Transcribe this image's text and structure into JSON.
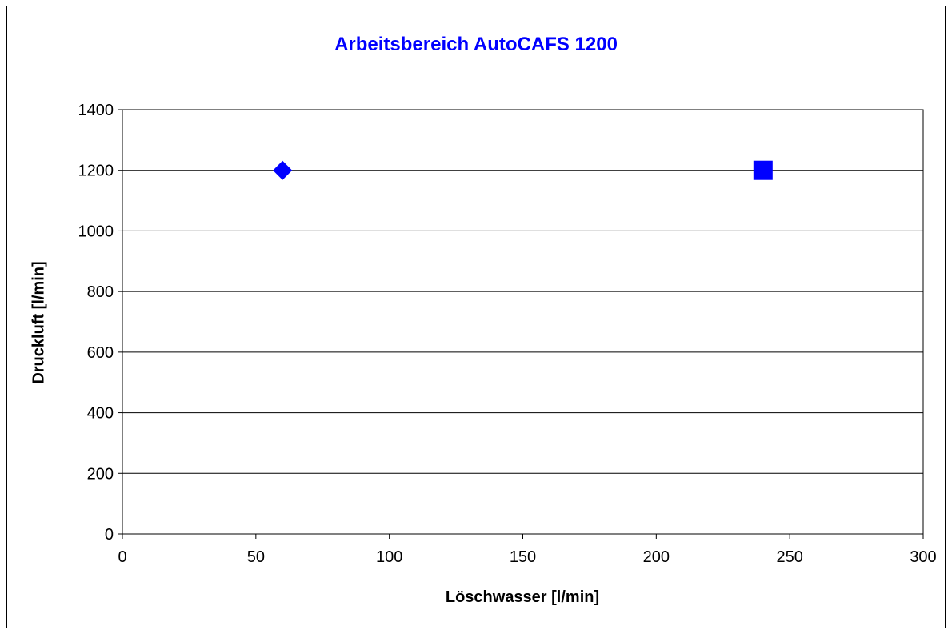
{
  "chart_data": {
    "type": "scatter",
    "title": "Arbeitsbereich AutoCAFS 1200",
    "xlabel": "Löschwasser [l/min]",
    "ylabel": "Druckluft [l/min]",
    "xlim": [
      0,
      300
    ],
    "ylim": [
      0,
      1400
    ],
    "xticks": [
      0,
      50,
      100,
      150,
      200,
      250,
      300
    ],
    "yticks": [
      0,
      200,
      400,
      600,
      800,
      1000,
      1200,
      1400
    ],
    "grid": "horizontal",
    "series": [
      {
        "marker": "diamond",
        "color": "#0000ff",
        "points": [
          {
            "x": 60,
            "y": 1200
          }
        ]
      },
      {
        "marker": "square",
        "color": "#0000ff",
        "points": [
          {
            "x": 240,
            "y": 1200
          }
        ]
      }
    ]
  }
}
